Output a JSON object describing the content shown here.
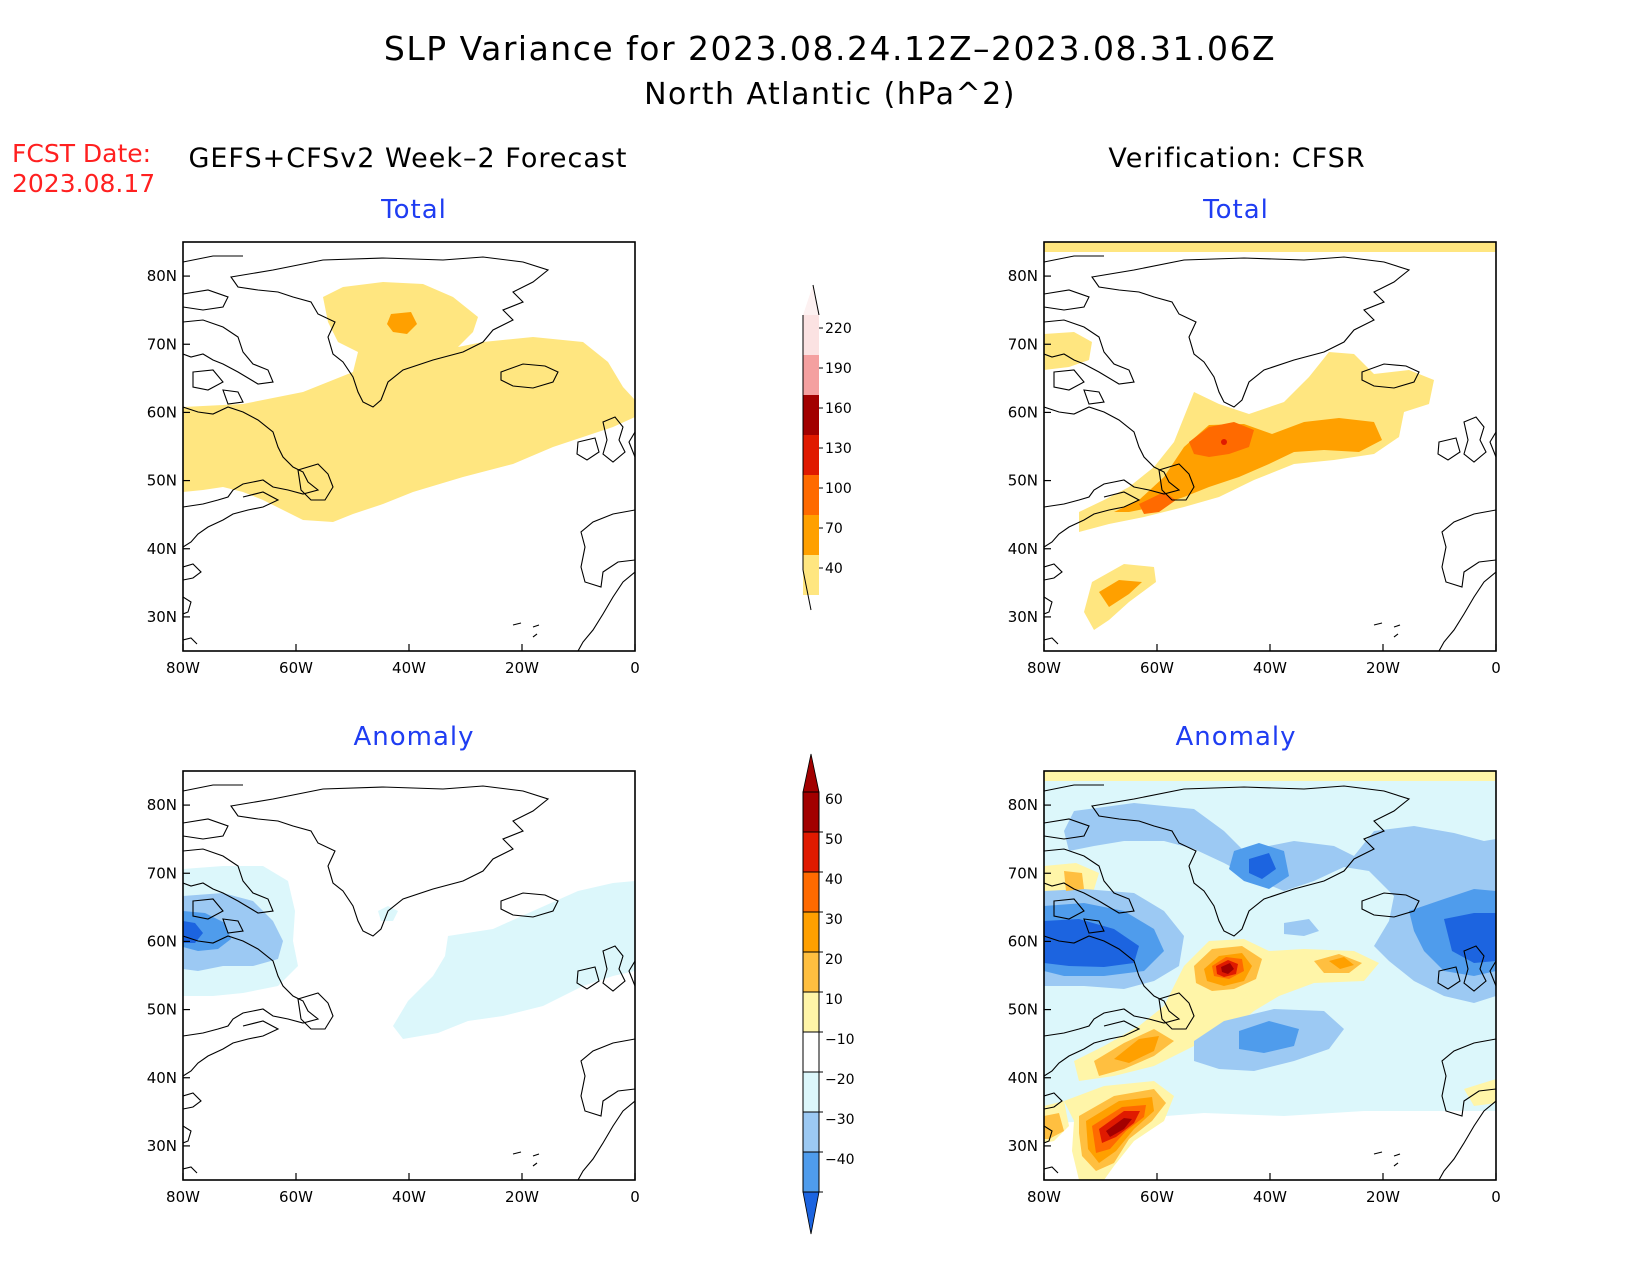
{
  "title": {
    "line1": "SLP Variance for 2023.08.24.12Z–2023.08.31.06Z",
    "line2": "North Atlantic (hPa^2)"
  },
  "fcst": {
    "label": "FCST Date:",
    "date": "2023.08.17"
  },
  "column_headers": {
    "left": "GEFS+CFSv2 Week–2 Forecast",
    "right": "Verification: CFSR"
  },
  "panel_titles": {
    "total": "Total",
    "anomaly": "Anomaly"
  },
  "axes": {
    "lon_labels": [
      "80W",
      "60W",
      "40W",
      "20W",
      "0"
    ],
    "lat_labels": [
      "80N",
      "70N",
      "60N",
      "50N",
      "40N",
      "30N"
    ],
    "lon_range": [
      -80,
      0
    ],
    "lat_range": [
      25,
      85
    ]
  },
  "colors": {
    "title_blue": "#1f3df2",
    "fcst_red": "#ff2020"
  },
  "total_scale": {
    "levels": [
      "220",
      "190",
      "160",
      "130",
      "100",
      "70",
      "40"
    ],
    "colors": [
      "#fbe2e2",
      "#f4a0a0",
      "#a20000",
      "#e01a00",
      "#ff6a00",
      "#ffa000",
      "#ffe680"
    ]
  },
  "anomaly_scale": {
    "levels": [
      "60",
      "50",
      "40",
      "30",
      "20",
      "10",
      "−10",
      "−20",
      "−30",
      "−40"
    ],
    "colors": [
      "#a20000",
      "#e01a00",
      "#ff6a00",
      "#ffa000",
      "#ffbf40",
      "#fff5a8",
      "#ffffff",
      "#dcf7fb",
      "#9cc9f3",
      "#4f9cec",
      "#1c64e0"
    ]
  }
}
